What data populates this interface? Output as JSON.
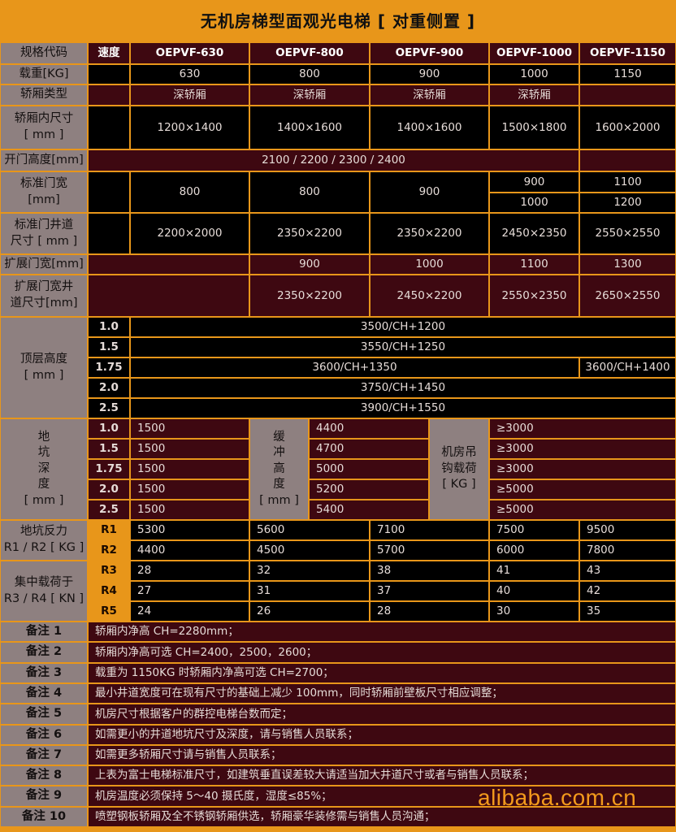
{
  "title": "无机房梯型面观光电梯 [ 对重侧置 ]",
  "colors": {
    "orange": "#e8961a",
    "label_gray": "#8e8080",
    "maroon": "#3e0811",
    "black": "#000000"
  },
  "header": {
    "spec_label": "规格代码",
    "speed_label": "速度",
    "models": [
      "OEPVF-630",
      "OEPVF-800",
      "OEPVF-900",
      "OEPVF-1000",
      "OEPVF-1150"
    ]
  },
  "load": {
    "label": "载重[KG]",
    "values": [
      "630",
      "800",
      "900",
      "1000",
      "1150"
    ]
  },
  "cab_type": {
    "label": "轿厢类型",
    "values": [
      "深轿厢",
      "深轿厢",
      "深轿厢",
      "深轿厢"
    ]
  },
  "cab_size": {
    "label": "轿厢内尺寸\n[ mm ]",
    "values": [
      "1200×1400",
      "1400×1600",
      "1400×1600",
      "1500×1800",
      "1600×2000"
    ]
  },
  "door_height": {
    "label": "开门高度[mm]",
    "value": "2100 / 2200 / 2300 / 2400"
  },
  "std_door_width": {
    "label": "标准门宽\n[mm]",
    "values": [
      "800",
      "800",
      "900"
    ],
    "col4": [
      "900",
      "1000"
    ],
    "col5": [
      "1100",
      "1200"
    ]
  },
  "std_shaft": {
    "label": "标准门井道\n尺寸 [ mm ]",
    "values": [
      "2200×2000",
      "2350×2200",
      "2350×2200",
      "2450×2350",
      "2550×2550"
    ]
  },
  "ext_door_width": {
    "label": "扩展门宽[mm]",
    "values": [
      "900",
      "1000",
      "1100",
      "1300"
    ]
  },
  "ext_shaft": {
    "label": "扩展门宽井\n道尺寸[mm]",
    "values": [
      "2350×2200",
      "2450×2200",
      "2550×2350",
      "2650×2550"
    ]
  },
  "overhead": {
    "label": "顶层高度\n[ mm ]",
    "rows": [
      {
        "speed": "1.0",
        "value": "3500/CH+1200"
      },
      {
        "speed": "1.5",
        "value": "3550/CH+1250"
      },
      {
        "speed": "1.75",
        "value": "3600/CH+1350",
        "value_col5": "3600/CH+1400"
      },
      {
        "speed": "2.0",
        "value": "3750/CH+1450"
      },
      {
        "speed": "2.5",
        "value": "3900/CH+1550"
      }
    ]
  },
  "pit": {
    "label": "地\n坑\n深\n度\n[ mm ]",
    "buffer_label": "缓\n冲\n高\n度\n[ mm ]",
    "hook_label": "机房吊\n钩载荷\n[ KG ]",
    "rows": [
      {
        "speed": "1.0",
        "depth": "1500",
        "buffer": "4400",
        "hook": "≥3000"
      },
      {
        "speed": "1.5",
        "depth": "1500",
        "buffer": "4700",
        "hook": "≥3000"
      },
      {
        "speed": "1.75",
        "depth": "1500",
        "buffer": "5000",
        "hook": "≥3000"
      },
      {
        "speed": "2.0",
        "depth": "1500",
        "buffer": "5200",
        "hook": "≥5000"
      },
      {
        "speed": "2.5",
        "depth": "1500",
        "buffer": "5400",
        "hook": "≥5000"
      }
    ]
  },
  "reaction": {
    "label": "地坑反力\nR1 / R2 [ KG ]",
    "rows": [
      {
        "code": "R1",
        "values": [
          "5300",
          "5600",
          "7100",
          "7500",
          "9500"
        ]
      },
      {
        "code": "R2",
        "values": [
          "4400",
          "4500",
          "5700",
          "6000",
          "7800"
        ]
      }
    ]
  },
  "concentrated": {
    "label": "集中载荷于\nR3 / R4 [ KN ]",
    "rows": [
      {
        "code": "R3",
        "values": [
          "28",
          "32",
          "38",
          "41",
          "43"
        ]
      },
      {
        "code": "R4",
        "values": [
          "27",
          "31",
          "37",
          "40",
          "42"
        ]
      },
      {
        "code": "R5",
        "values": [
          "24",
          "26",
          "28",
          "30",
          "35"
        ]
      }
    ]
  },
  "notes": [
    {
      "label": "备注 1",
      "text": "轿厢内净高 CH=2280mm；"
    },
    {
      "label": "备注 2",
      "text": "轿厢内净高可选 CH=2400，2500，2600；"
    },
    {
      "label": "备注 3",
      "text": "载重为 1150KG 时轿厢内净高可选 CH=2700；"
    },
    {
      "label": "备注 4",
      "text": "最小井道宽度可在现有尺寸的基础上减少 100mm，同时轿厢前壁板尺寸相应调整；"
    },
    {
      "label": "备注 5",
      "text": "机房尺寸根据客户的群控电梯台数而定；"
    },
    {
      "label": "备注 6",
      "text": "如需更小的井道地坑尺寸及深度，请与销售人员联系；"
    },
    {
      "label": "备注 7",
      "text": "如需更多轿厢尺寸请与销售人员联系；"
    },
    {
      "label": "备注 8",
      "text": "上表为富士电梯标准尺寸，如建筑垂直误差较大请适当加大井道尺寸或者与销售人员联系；"
    },
    {
      "label": "备注 9",
      "text": "机房温度必须保持 5～40 摄氏度，湿度≤85%；"
    },
    {
      "label": "备注 10",
      "text": "喷塑钢板轿厢及全不锈钢轿厢供选，轿厢豪华装修需与销售人员沟通；"
    }
  ],
  "watermark": "alibaba.com.cn"
}
